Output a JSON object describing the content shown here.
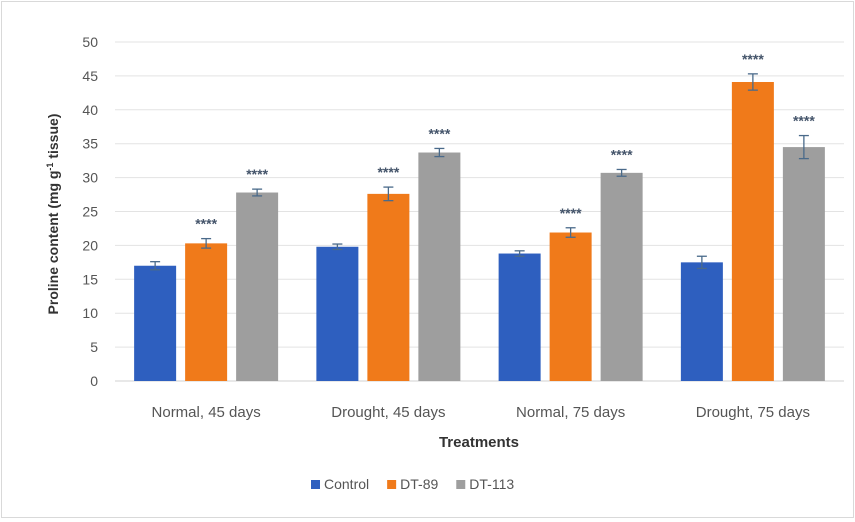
{
  "chart_data": {
    "type": "bar",
    "title": "",
    "xlabel": "Treatments",
    "ylabel": {
      "prefix": "Proline content (mg g",
      "superscript": "-1",
      "suffix": " tissue)"
    },
    "ylim": [
      0,
      50
    ],
    "yticks": [
      "0",
      "5",
      "10",
      "15",
      "20",
      "25",
      "30",
      "35",
      "40",
      "45",
      "50"
    ],
    "grid": true,
    "legend_position": "bottom",
    "categories": [
      "Normal, 45 days",
      "Drought, 45 days",
      "Normal, 75 days",
      "Drought, 75 days"
    ],
    "series": [
      {
        "name": "Control",
        "color": "#2e5fbf",
        "values": [
          17.0,
          19.8,
          18.8,
          17.5
        ],
        "errors": [
          0.6,
          0.4,
          0.4,
          0.9
        ],
        "significance": [
          "",
          "",
          "",
          ""
        ]
      },
      {
        "name": "DT-89",
        "color": "#f07a1a",
        "values": [
          20.3,
          27.6,
          21.9,
          44.1
        ],
        "errors": [
          0.7,
          1.0,
          0.7,
          1.2
        ],
        "significance": [
          "****",
          "****",
          "****",
          "****"
        ]
      },
      {
        "name": "DT-113",
        "color": "#9e9e9e",
        "values": [
          27.8,
          33.7,
          30.7,
          34.5
        ],
        "errors": [
          0.5,
          0.6,
          0.5,
          1.7
        ],
        "significance": [
          "****",
          "****",
          "****",
          "****"
        ]
      }
    ]
  }
}
